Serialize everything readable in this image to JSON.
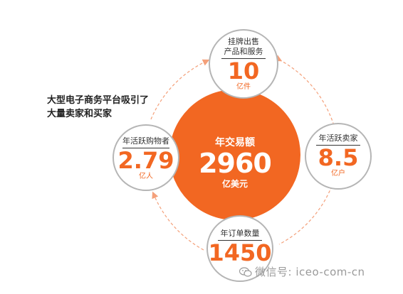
{
  "headline": {
    "line1": "大型电子商务平台吸引了",
    "line2": "大量卖家和买家"
  },
  "center": {
    "title": "年交易额",
    "value": "2960",
    "unit": "亿美元"
  },
  "nodes": {
    "listings": {
      "line1": "挂牌出售",
      "line2": "产品和服务",
      "value": "10",
      "unit": "亿件"
    },
    "sellers": {
      "label": "年活跃卖家",
      "value": "8.5",
      "unit": "亿户"
    },
    "orders": {
      "label": "年订单数量",
      "value": "1450"
    },
    "buyers": {
      "label": "年活跃购物者",
      "value": "2.79",
      "unit": "亿人"
    }
  },
  "watermark": {
    "text": "微信号: iceo-com-cn",
    "icon": "wechat-icon"
  },
  "colors": {
    "accent": "#f26722",
    "circle_stroke": "#b5b5b5",
    "dash": "#f4a07a",
    "text_dark": "#222222"
  }
}
